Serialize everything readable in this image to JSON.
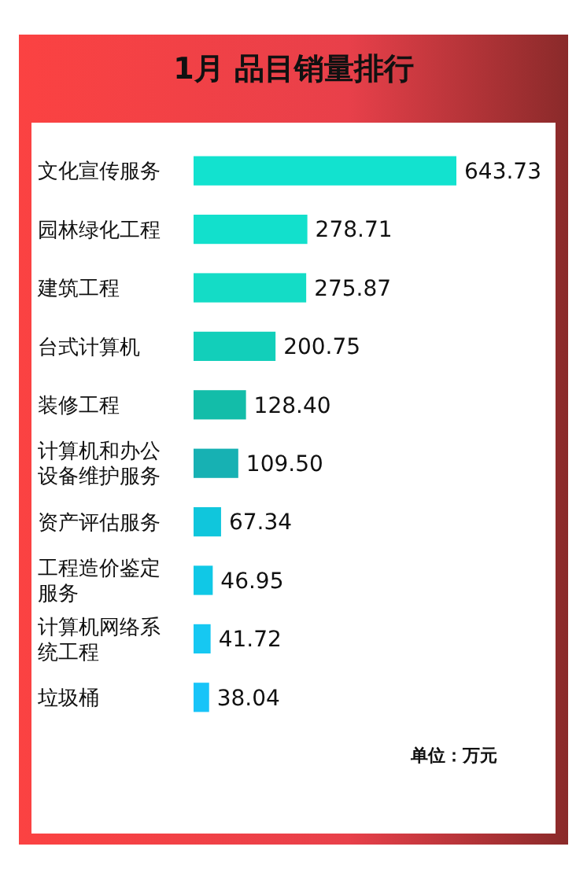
{
  "chart_data": {
    "type": "bar",
    "orientation": "horizontal",
    "title": "1月 品目销量排行",
    "categories": [
      "文化宣传服务",
      "园林绿化工程",
      "建筑工程",
      "台式计算机",
      "装修工程",
      "计算机和办公设备维护服务",
      "资产评估服务",
      "工程造价鉴定服务",
      "计算机网络系统工程",
      "垃圾桶"
    ],
    "values": [
      643.73,
      278.71,
      275.87,
      200.75,
      128.4,
      109.5,
      67.34,
      46.95,
      41.72,
      38.04
    ],
    "value_labels": [
      "643.73",
      "278.71",
      "275.87",
      "200.75",
      "128.40",
      "109.50",
      "67.34",
      "46.95",
      "41.72",
      "38.04"
    ],
    "colors": [
      "#12e2cf",
      "#12e0cc",
      "#14dcc6",
      "#12cfba",
      "#13bda9",
      "#17b1b3",
      "#10c6dc",
      "#10c8e6",
      "#16c8f2",
      "#18c4f8"
    ],
    "annotations": [
      "单位：万元"
    ]
  }
}
